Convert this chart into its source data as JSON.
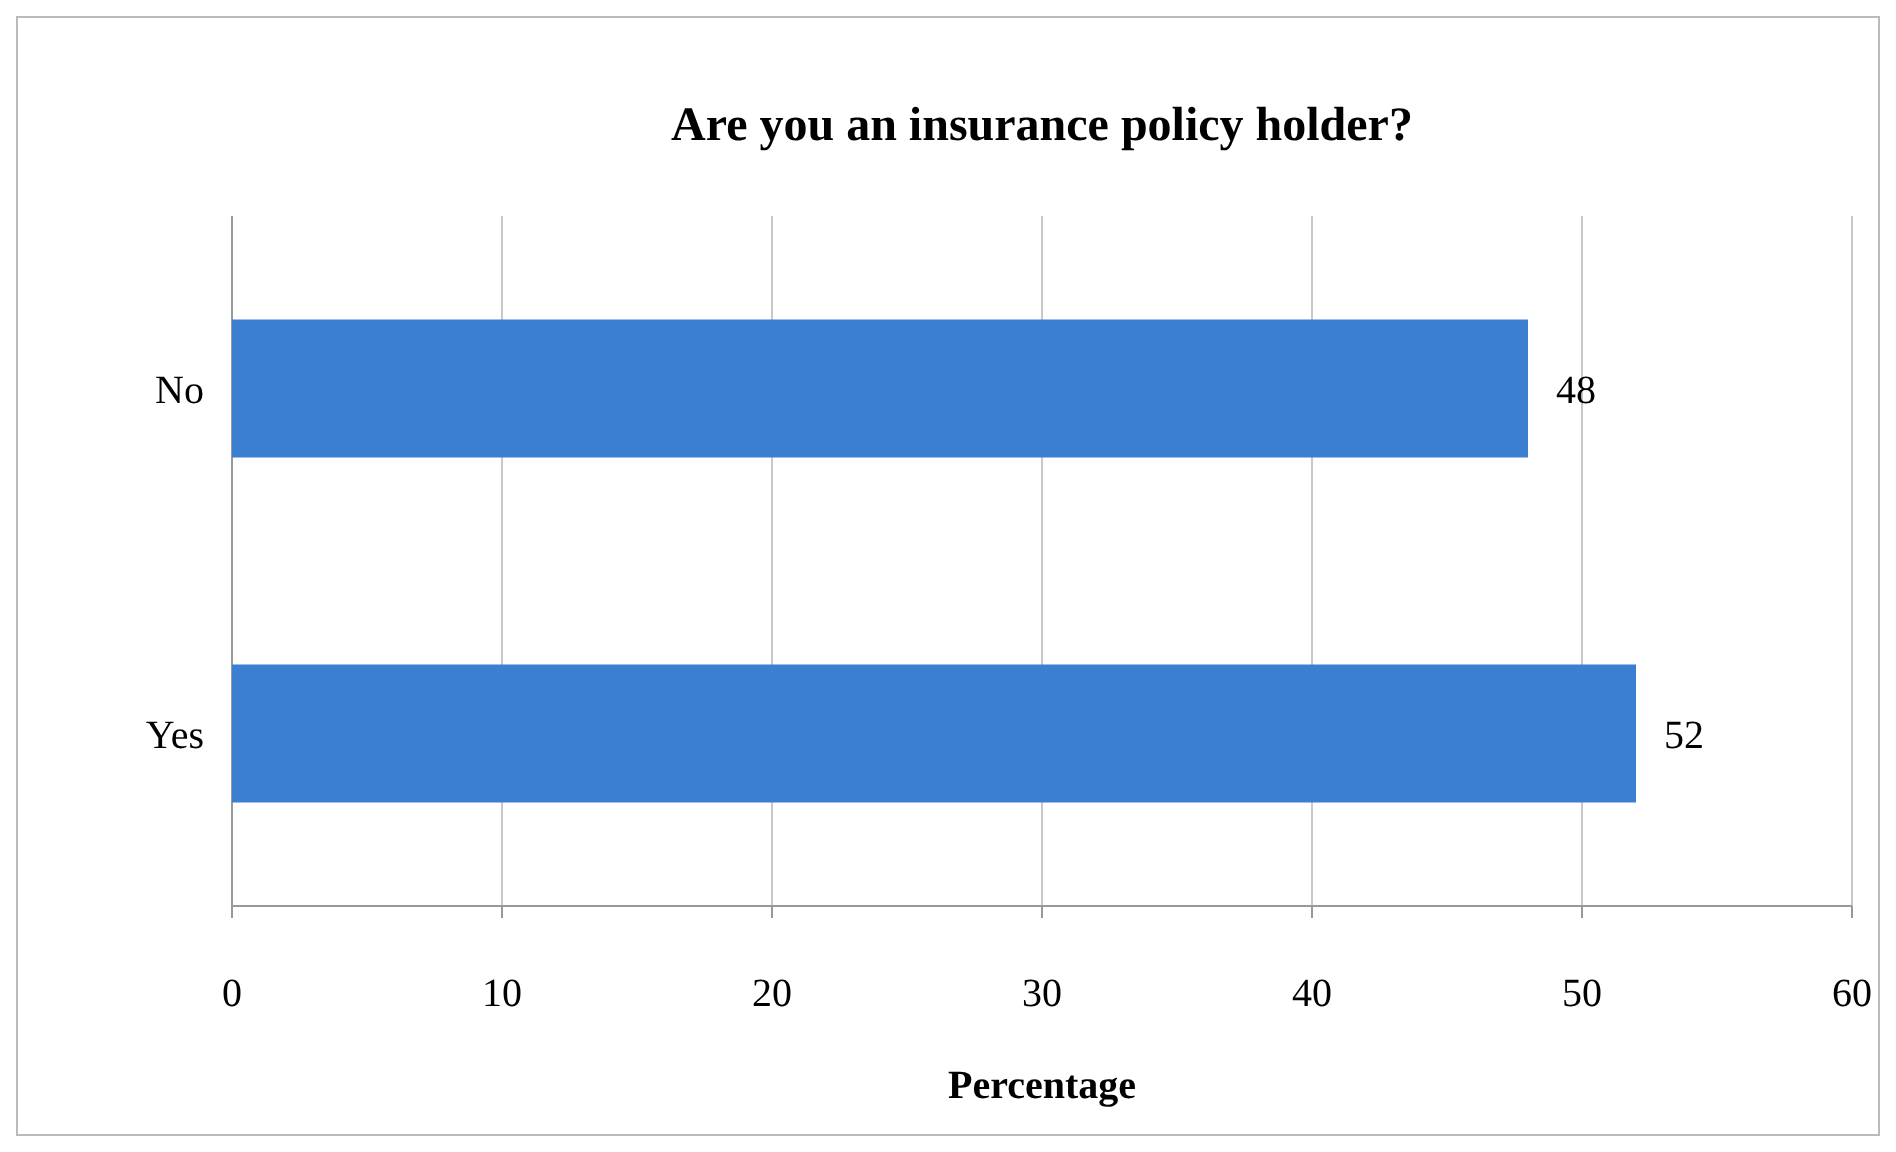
{
  "chart_data": {
    "type": "bar",
    "orientation": "horizontal",
    "title": "Are you an insurance policy holder?",
    "xlabel": "Percentage",
    "categories": [
      "No",
      "Yes"
    ],
    "values": [
      48,
      52
    ],
    "color": "#3a7fd2",
    "xlim": [
      0,
      60
    ],
    "xticks": [
      0,
      10,
      20,
      30,
      40,
      50,
      60
    ],
    "grid": "x",
    "data_labels": true
  }
}
